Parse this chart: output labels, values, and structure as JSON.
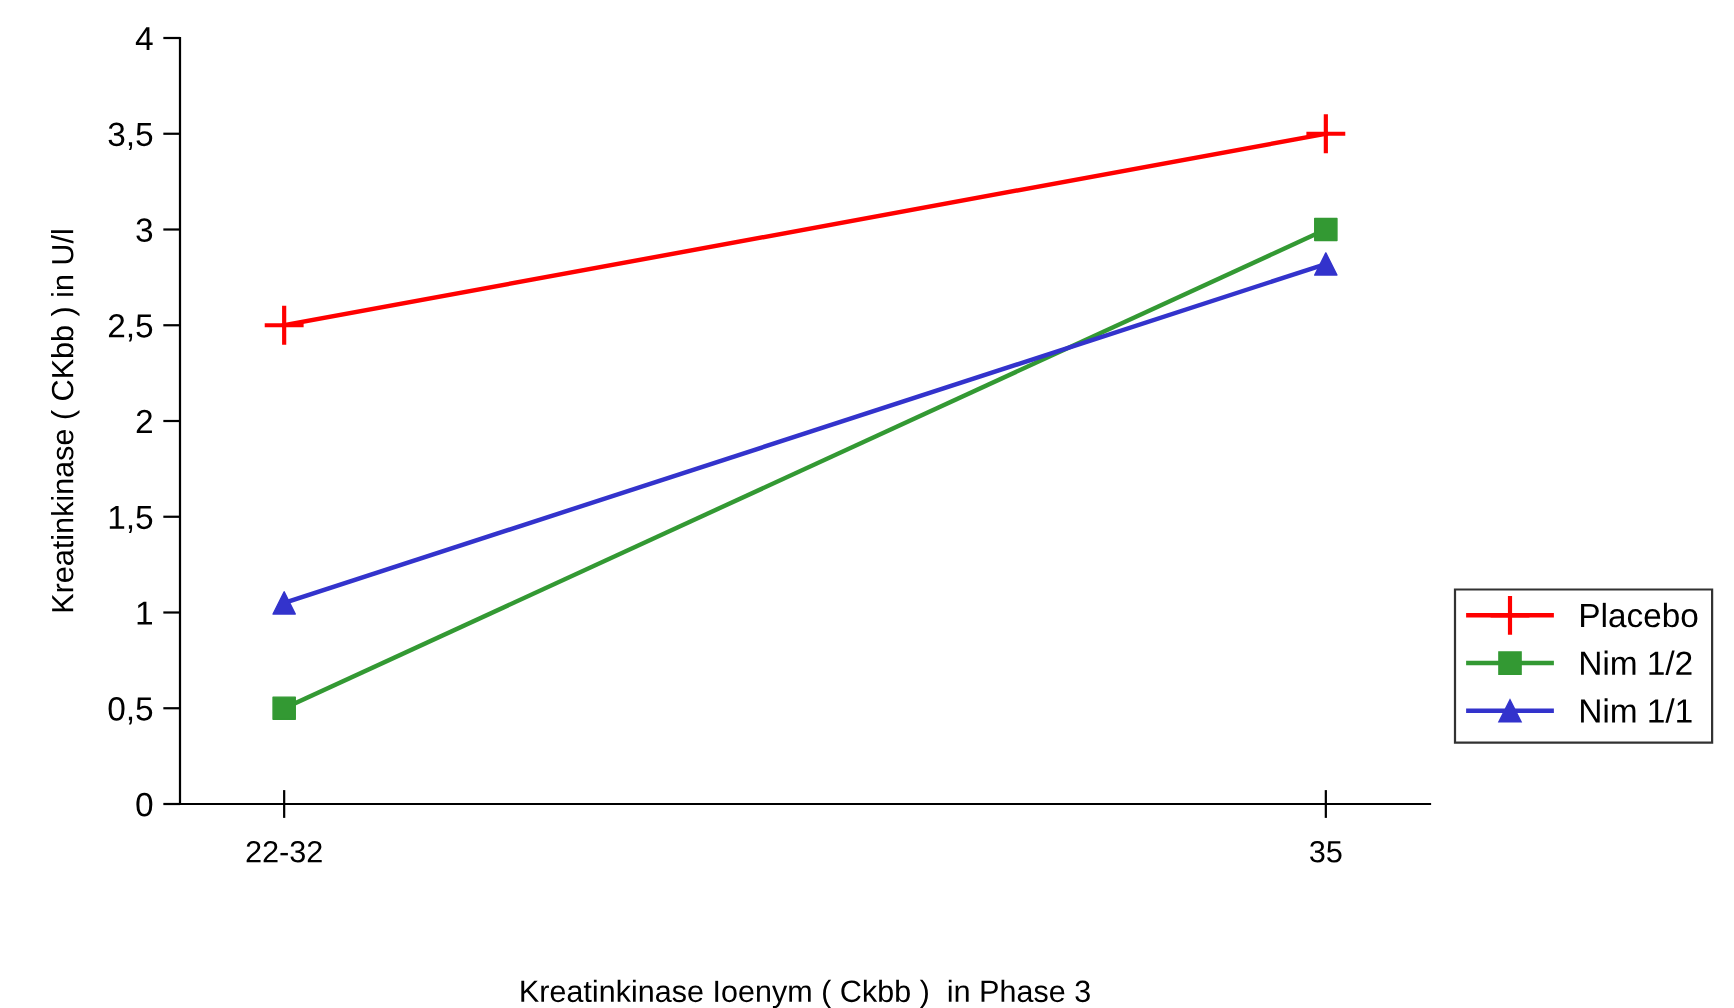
{
  "chart_data": {
    "type": "line",
    "xlabel": "Kreatinkinase Ioenym ( Ckbb )  in Phase 3",
    "ylabel": "Kreatinkinase ( CKbb ) in U/l",
    "categories": [
      "22-32",
      "35"
    ],
    "series": [
      {
        "name": "Placebo",
        "color": "#ff0000",
        "marker": "cross",
        "values": [
          2.5,
          3.5
        ]
      },
      {
        "name": "Nim 1/2",
        "color": "#339933",
        "marker": "square",
        "values": [
          0.5,
          3.0
        ]
      },
      {
        "name": "Nim 1/1",
        "color": "#3333cc",
        "marker": "triangle",
        "values": [
          1.05,
          2.82
        ]
      }
    ],
    "ylim": [
      0,
      4
    ],
    "yticks": [
      0,
      {
        "value": 0.5,
        "label": "0,5"
      },
      1,
      {
        "value": 1.5,
        "label": "1,5"
      },
      2,
      {
        "value": 2.5,
        "label": "2,5"
      },
      3,
      {
        "value": 3.5,
        "label": "3,5"
      },
      4
    ],
    "grid": false,
    "legend": "right",
    "line_style": "solid"
  }
}
